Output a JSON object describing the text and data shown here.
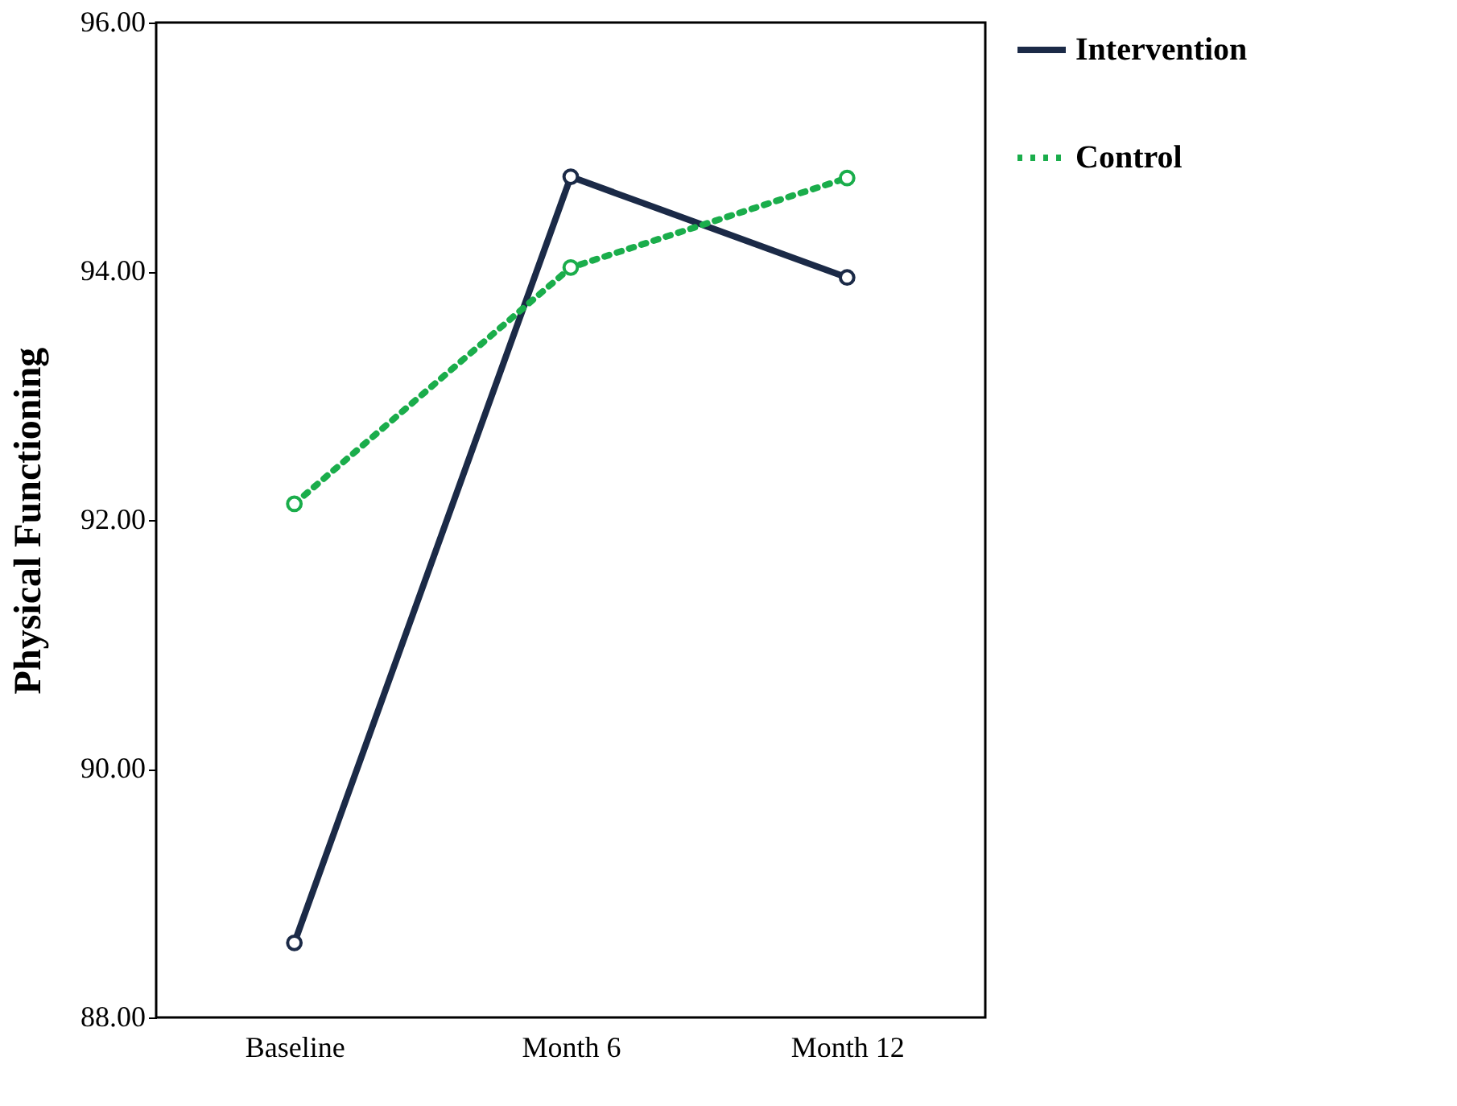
{
  "chart_data": {
    "type": "line",
    "ylabel": "Physical Functioning",
    "categories": [
      "Baseline",
      "Month 6",
      "Month 12"
    ],
    "series": [
      {
        "name": "Intervention",
        "color": "#1b2a47",
        "values": [
          88.6,
          94.76,
          93.95
        ],
        "line_style": "solid"
      },
      {
        "name": "Control",
        "color": "#1aad4b",
        "values": [
          92.13,
          94.03,
          94.75
        ],
        "line_style": "dotted"
      }
    ],
    "ylim": [
      88,
      96
    ],
    "yticks": [
      {
        "value": 88,
        "label": "88.00"
      },
      {
        "value": 90,
        "label": "90.00"
      },
      {
        "value": 92,
        "label": "92.00"
      },
      {
        "value": 94,
        "label": "94.00"
      },
      {
        "value": 96,
        "label": "96.00"
      }
    ],
    "grid": false,
    "legend": "right",
    "marker": "circle"
  }
}
